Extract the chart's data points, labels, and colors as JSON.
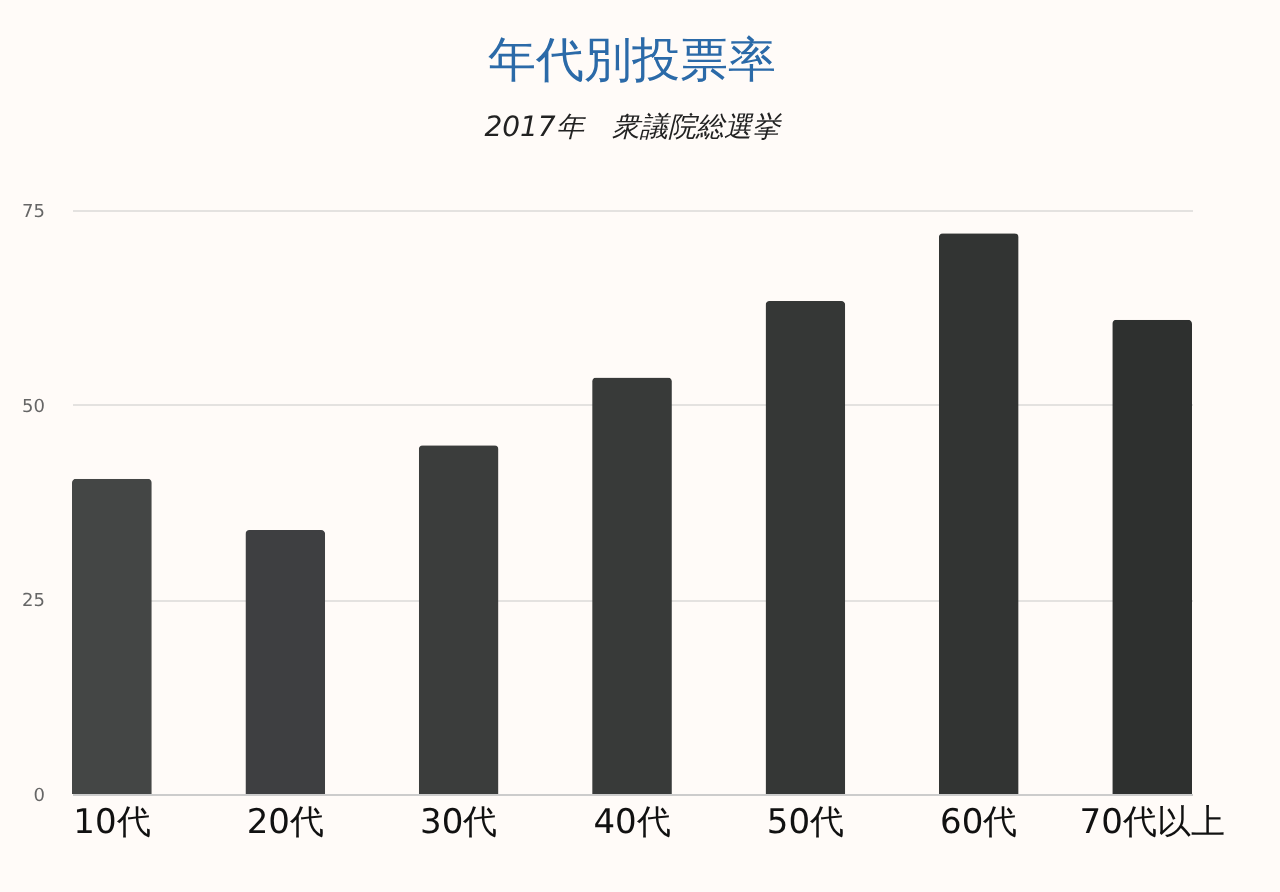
{
  "chart_data": {
    "type": "bar",
    "title": "年代別投票率",
    "subtitle": "2017年　衆議院総選挙",
    "categories": [
      "10代",
      "20代",
      "30代",
      "40代",
      "50代",
      "60代",
      "70代以上"
    ],
    "values": [
      40.5,
      33.9,
      44.8,
      53.5,
      63.3,
      72.0,
      60.9
    ],
    "colors": [
      "#444645",
      "#3e3f41",
      "#3b3d3c",
      "#383a39",
      "#353736",
      "#323433",
      "#2e302f"
    ],
    "ylim": [
      0,
      75
    ],
    "yticks": [
      0,
      25,
      50,
      75
    ],
    "grid": "y",
    "legend": false
  }
}
